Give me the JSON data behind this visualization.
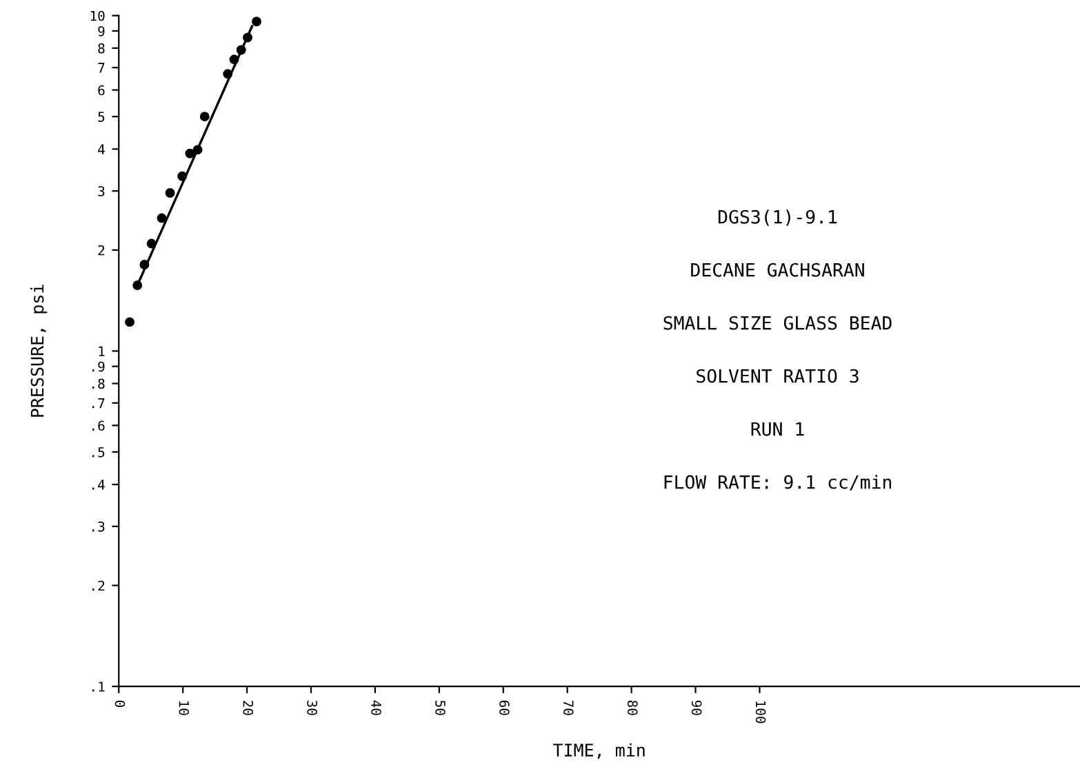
{
  "chart_data": {
    "type": "scatter",
    "xlabel": "TIME, min",
    "ylabel": "PRESSURE, psi",
    "log": "y",
    "xlim": [
      0,
      150
    ],
    "ylim": [
      0.1,
      10
    ],
    "xticks": [
      0,
      10,
      20,
      30,
      40,
      50,
      60,
      70,
      80,
      90,
      100
    ],
    "yticks": [
      {
        "value": 0.1,
        "label": ".1"
      },
      {
        "value": 0.2,
        "label": ".2"
      },
      {
        "value": 0.3,
        "label": ".3"
      },
      {
        "value": 0.4,
        "label": ".4"
      },
      {
        "value": 0.5,
        "label": ".5"
      },
      {
        "value": 0.6,
        "label": ".6"
      },
      {
        "value": 0.7,
        "label": ".7"
      },
      {
        "value": 0.8,
        "label": ".8"
      },
      {
        "value": 0.9,
        "label": ".9"
      },
      1,
      2,
      3,
      4,
      5,
      6,
      7,
      8,
      9,
      10
    ],
    "grid": false,
    "series": [
      {
        "marker": "circle",
        "color": "#000000",
        "x": [
          1.7,
          2.9,
          4.0,
          5.1,
          6.7,
          8.0,
          9.9,
          11.1,
          12.3,
          13.4,
          17.0,
          18.0,
          19.1,
          20.1,
          21.5
        ],
        "values": [
          1.22,
          1.57,
          1.81,
          2.09,
          2.49,
          2.96,
          3.32,
          3.88,
          3.98,
          5.0,
          6.7,
          7.4,
          7.9,
          8.6,
          9.6
        ]
      },
      {
        "type": "line",
        "marker": "none",
        "color": "#000000",
        "x": [
          2.9,
          20.8
        ],
        "values": [
          1.57,
          9.3
        ]
      }
    ],
    "annotations": [
      "DGS3(1)-9.1",
      "DECANE GACHSARAN",
      "SMALL SIZE GLASS BEAD",
      "SOLVENT RATIO 3",
      "RUN 1",
      "FLOW RATE: 9.1 cc/min"
    ]
  }
}
